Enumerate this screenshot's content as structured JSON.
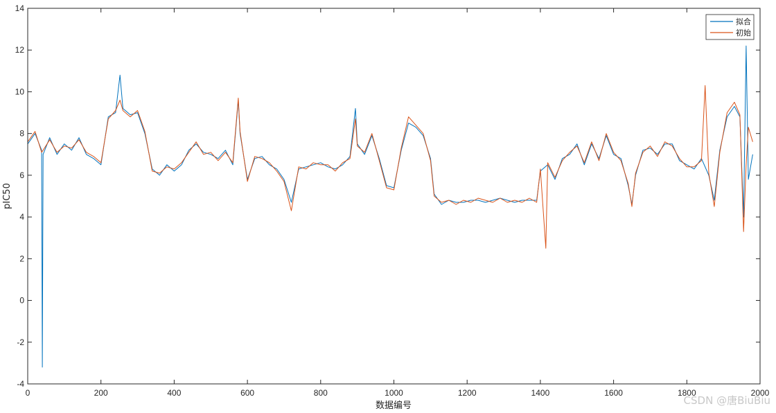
{
  "chart_data": {
    "type": "line",
    "xlabel": "数据编号",
    "ylabel": "pIC50",
    "xlim": [
      0,
      2000
    ],
    "ylim": [
      -4,
      14
    ],
    "xticks": [
      0,
      200,
      400,
      600,
      800,
      1000,
      1200,
      1400,
      1600,
      1800,
      2000
    ],
    "yticks": [
      -4,
      -2,
      0,
      2,
      4,
      6,
      8,
      10,
      12,
      14
    ],
    "grid": false,
    "legend_position": "top-right",
    "series": [
      {
        "name": "拟合",
        "color": "#0072BD",
        "points": [
          [
            0,
            7.5
          ],
          [
            20,
            8.0
          ],
          [
            38,
            7.2
          ],
          [
            40,
            -3.2
          ],
          [
            42,
            7.0
          ],
          [
            60,
            7.8
          ],
          [
            80,
            7.0
          ],
          [
            100,
            7.5
          ],
          [
            120,
            7.2
          ],
          [
            140,
            7.8
          ],
          [
            160,
            7.0
          ],
          [
            180,
            6.8
          ],
          [
            200,
            6.5
          ],
          [
            220,
            8.8
          ],
          [
            240,
            9.0
          ],
          [
            252,
            10.8
          ],
          [
            260,
            9.2
          ],
          [
            280,
            8.9
          ],
          [
            300,
            9.0
          ],
          [
            320,
            8.0
          ],
          [
            340,
            6.3
          ],
          [
            360,
            6.0
          ],
          [
            380,
            6.5
          ],
          [
            400,
            6.2
          ],
          [
            420,
            6.5
          ],
          [
            440,
            7.2
          ],
          [
            460,
            7.5
          ],
          [
            480,
            7.1
          ],
          [
            500,
            7.0
          ],
          [
            520,
            6.8
          ],
          [
            540,
            7.2
          ],
          [
            560,
            6.5
          ],
          [
            575,
            9.6
          ],
          [
            580,
            8.0
          ],
          [
            600,
            5.8
          ],
          [
            620,
            6.8
          ],
          [
            640,
            6.9
          ],
          [
            660,
            6.5
          ],
          [
            680,
            6.3
          ],
          [
            700,
            5.8
          ],
          [
            720,
            4.7
          ],
          [
            740,
            6.3
          ],
          [
            760,
            6.4
          ],
          [
            780,
            6.5
          ],
          [
            800,
            6.6
          ],
          [
            820,
            6.4
          ],
          [
            840,
            6.3
          ],
          [
            860,
            6.5
          ],
          [
            880,
            6.9
          ],
          [
            895,
            9.2
          ],
          [
            900,
            7.5
          ],
          [
            920,
            7.0
          ],
          [
            940,
            7.9
          ],
          [
            960,
            6.8
          ],
          [
            980,
            5.5
          ],
          [
            1000,
            5.4
          ],
          [
            1020,
            7.2
          ],
          [
            1040,
            8.5
          ],
          [
            1060,
            8.3
          ],
          [
            1080,
            7.9
          ],
          [
            1100,
            6.8
          ],
          [
            1110,
            5.1
          ],
          [
            1130,
            4.6
          ],
          [
            1150,
            4.8
          ],
          [
            1170,
            4.7
          ],
          [
            1190,
            4.7
          ],
          [
            1210,
            4.8
          ],
          [
            1230,
            4.8
          ],
          [
            1250,
            4.7
          ],
          [
            1270,
            4.8
          ],
          [
            1290,
            4.9
          ],
          [
            1310,
            4.8
          ],
          [
            1330,
            4.7
          ],
          [
            1350,
            4.8
          ],
          [
            1370,
            4.8
          ],
          [
            1390,
            4.8
          ],
          [
            1400,
            6.2
          ],
          [
            1420,
            6.5
          ],
          [
            1440,
            5.8
          ],
          [
            1460,
            6.8
          ],
          [
            1480,
            7.0
          ],
          [
            1500,
            7.5
          ],
          [
            1520,
            6.5
          ],
          [
            1540,
            7.5
          ],
          [
            1560,
            6.8
          ],
          [
            1580,
            7.9
          ],
          [
            1600,
            7.0
          ],
          [
            1620,
            6.8
          ],
          [
            1640,
            5.5
          ],
          [
            1650,
            4.6
          ],
          [
            1660,
            6.0
          ],
          [
            1680,
            7.2
          ],
          [
            1700,
            7.3
          ],
          [
            1720,
            7.0
          ],
          [
            1740,
            7.5
          ],
          [
            1760,
            7.5
          ],
          [
            1780,
            6.7
          ],
          [
            1800,
            6.5
          ],
          [
            1820,
            6.3
          ],
          [
            1840,
            6.8
          ],
          [
            1860,
            6.0
          ],
          [
            1875,
            4.8
          ],
          [
            1890,
            7.2
          ],
          [
            1910,
            8.8
          ],
          [
            1930,
            9.3
          ],
          [
            1945,
            8.8
          ],
          [
            1955,
            4.0
          ],
          [
            1962,
            12.2
          ],
          [
            1968,
            5.8
          ],
          [
            1980,
            7.0
          ]
        ]
      },
      {
        "name": "初始",
        "color": "#D95319",
        "points": [
          [
            0,
            7.6
          ],
          [
            20,
            8.1
          ],
          [
            38,
            7.1
          ],
          [
            42,
            7.2
          ],
          [
            60,
            7.7
          ],
          [
            80,
            7.1
          ],
          [
            100,
            7.4
          ],
          [
            120,
            7.3
          ],
          [
            140,
            7.7
          ],
          [
            160,
            7.1
          ],
          [
            180,
            6.9
          ],
          [
            200,
            6.6
          ],
          [
            220,
            8.7
          ],
          [
            240,
            9.1
          ],
          [
            252,
            9.6
          ],
          [
            260,
            9.1
          ],
          [
            280,
            8.8
          ],
          [
            300,
            9.1
          ],
          [
            320,
            8.1
          ],
          [
            340,
            6.2
          ],
          [
            360,
            6.1
          ],
          [
            380,
            6.4
          ],
          [
            400,
            6.3
          ],
          [
            420,
            6.6
          ],
          [
            440,
            7.1
          ],
          [
            460,
            7.6
          ],
          [
            480,
            7.0
          ],
          [
            500,
            7.1
          ],
          [
            520,
            6.7
          ],
          [
            540,
            7.1
          ],
          [
            560,
            6.6
          ],
          [
            575,
            9.7
          ],
          [
            580,
            8.1
          ],
          [
            600,
            5.7
          ],
          [
            620,
            6.9
          ],
          [
            640,
            6.8
          ],
          [
            660,
            6.6
          ],
          [
            680,
            6.2
          ],
          [
            700,
            5.7
          ],
          [
            720,
            4.3
          ],
          [
            740,
            6.4
          ],
          [
            760,
            6.3
          ],
          [
            780,
            6.6
          ],
          [
            800,
            6.5
          ],
          [
            820,
            6.5
          ],
          [
            840,
            6.2
          ],
          [
            860,
            6.6
          ],
          [
            880,
            6.8
          ],
          [
            895,
            8.7
          ],
          [
            900,
            7.4
          ],
          [
            920,
            7.1
          ],
          [
            940,
            8.0
          ],
          [
            960,
            6.7
          ],
          [
            980,
            5.4
          ],
          [
            1000,
            5.3
          ],
          [
            1020,
            7.3
          ],
          [
            1040,
            8.8
          ],
          [
            1060,
            8.4
          ],
          [
            1080,
            8.0
          ],
          [
            1100,
            6.7
          ],
          [
            1110,
            5.0
          ],
          [
            1130,
            4.7
          ],
          [
            1150,
            4.8
          ],
          [
            1170,
            4.6
          ],
          [
            1190,
            4.8
          ],
          [
            1210,
            4.7
          ],
          [
            1230,
            4.9
          ],
          [
            1250,
            4.8
          ],
          [
            1270,
            4.7
          ],
          [
            1290,
            4.9
          ],
          [
            1310,
            4.7
          ],
          [
            1330,
            4.8
          ],
          [
            1350,
            4.7
          ],
          [
            1370,
            4.9
          ],
          [
            1390,
            4.7
          ],
          [
            1400,
            6.3
          ],
          [
            1415,
            2.5
          ],
          [
            1420,
            6.6
          ],
          [
            1440,
            5.9
          ],
          [
            1460,
            6.7
          ],
          [
            1480,
            7.1
          ],
          [
            1500,
            7.4
          ],
          [
            1520,
            6.6
          ],
          [
            1540,
            7.6
          ],
          [
            1560,
            6.7
          ],
          [
            1580,
            8.0
          ],
          [
            1600,
            7.1
          ],
          [
            1620,
            6.7
          ],
          [
            1640,
            5.6
          ],
          [
            1650,
            4.5
          ],
          [
            1660,
            6.1
          ],
          [
            1680,
            7.1
          ],
          [
            1700,
            7.4
          ],
          [
            1720,
            6.9
          ],
          [
            1740,
            7.6
          ],
          [
            1760,
            7.4
          ],
          [
            1780,
            6.8
          ],
          [
            1800,
            6.4
          ],
          [
            1820,
            6.4
          ],
          [
            1840,
            6.7
          ],
          [
            1850,
            10.3
          ],
          [
            1860,
            6.1
          ],
          [
            1875,
            4.5
          ],
          [
            1890,
            7.1
          ],
          [
            1910,
            9.0
          ],
          [
            1930,
            9.5
          ],
          [
            1945,
            8.9
          ],
          [
            1955,
            3.3
          ],
          [
            1962,
            6.5
          ],
          [
            1968,
            8.3
          ],
          [
            1980,
            7.6
          ]
        ]
      }
    ]
  },
  "watermark": "CSDN @唐BiuBiu"
}
